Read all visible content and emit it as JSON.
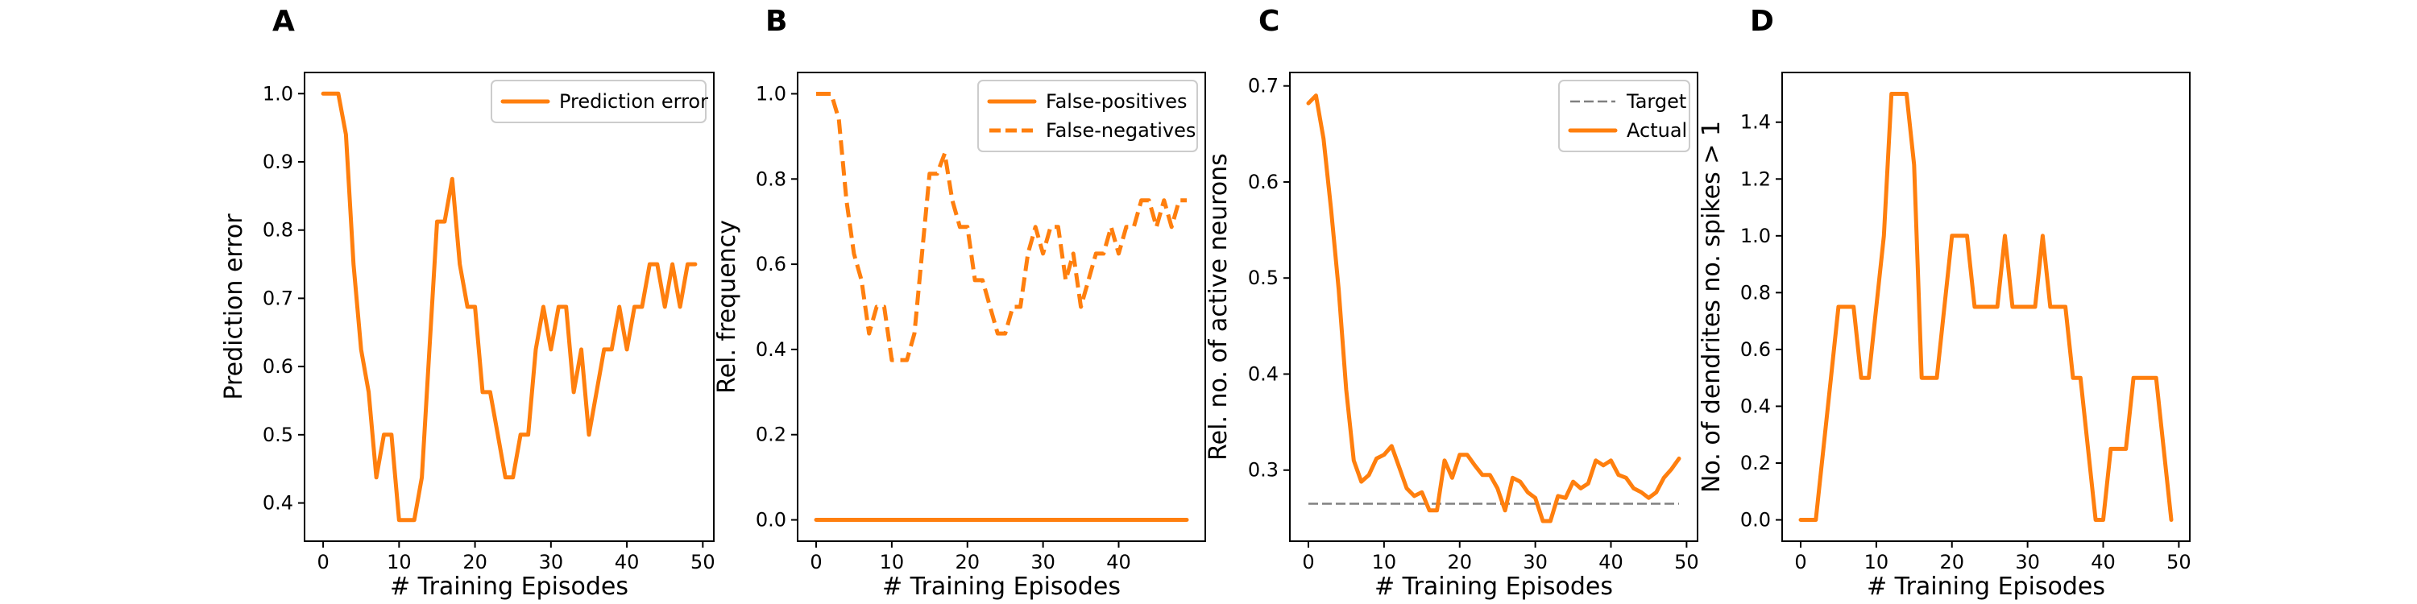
{
  "colors": {
    "series": "#ff7f0e",
    "target": "#808080"
  },
  "panels": [
    {
      "letter": "A",
      "legend_position": "top-right",
      "chart_data": {
        "type": "line",
        "title": "",
        "xlabel": "# Training Episodes",
        "ylabel": "Prediction error",
        "xlim": [
          -2.45,
          51.45
        ],
        "ylim": [
          0.344,
          1.031
        ],
        "xticks": [
          0,
          10,
          20,
          30,
          40,
          50
        ],
        "yticks": [
          0.4,
          0.5,
          0.6,
          0.7,
          0.8,
          0.9,
          1.0
        ],
        "ytick_format": 1,
        "series": [
          {
            "name": "Prediction error",
            "style": "solid",
            "x": [
              0,
              1,
              2,
              3,
              4,
              5,
              6,
              7,
              8,
              9,
              10,
              11,
              12,
              13,
              14,
              15,
              16,
              17,
              18,
              19,
              20,
              21,
              22,
              23,
              24,
              25,
              26,
              27,
              28,
              29,
              30,
              31,
              32,
              33,
              34,
              35,
              36,
              37,
              38,
              39,
              40,
              41,
              42,
              43,
              44,
              45,
              46,
              47,
              48,
              49
            ],
            "values": [
              1.0,
              1.0,
              1.0,
              0.94,
              0.75,
              0.625,
              0.5625,
              0.4375,
              0.5,
              0.5,
              0.375,
              0.375,
              0.375,
              0.4375,
              0.625,
              0.8125,
              0.8125,
              0.875,
              0.75,
              0.6875,
              0.6875,
              0.5625,
              0.5625,
              0.5,
              0.4375,
              0.4375,
              0.5,
              0.5,
              0.625,
              0.6875,
              0.625,
              0.6875,
              0.6875,
              0.5625,
              0.625,
              0.5,
              0.5625,
              0.625,
              0.625,
              0.6875,
              0.625,
              0.6875,
              0.6875,
              0.75,
              0.75,
              0.6875,
              0.75,
              0.6875,
              0.75,
              0.75
            ]
          }
        ]
      }
    },
    {
      "letter": "B",
      "legend_position": "top-right",
      "chart_data": {
        "type": "line",
        "title": "",
        "xlabel": "# Training Episodes",
        "ylabel": "Rel. frequency",
        "xlim": [
          -2.45,
          51.45
        ],
        "ylim": [
          -0.05,
          1.05
        ],
        "xticks": [
          0,
          10,
          20,
          30,
          40
        ],
        "yticks": [
          0.0,
          0.2,
          0.4,
          0.6,
          0.8,
          1.0
        ],
        "ytick_format": 1,
        "series": [
          {
            "name": "False-positives",
            "style": "solid",
            "x": [
              0,
              1,
              2,
              3,
              4,
              5,
              6,
              7,
              8,
              9,
              10,
              11,
              12,
              13,
              14,
              15,
              16,
              17,
              18,
              19,
              20,
              21,
              22,
              23,
              24,
              25,
              26,
              27,
              28,
              29,
              30,
              31,
              32,
              33,
              34,
              35,
              36,
              37,
              38,
              39,
              40,
              41,
              42,
              43,
              44,
              45,
              46,
              47,
              48,
              49
            ],
            "values": [
              0,
              0,
              0,
              0,
              0,
              0,
              0,
              0,
              0,
              0,
              0,
              0,
              0,
              0,
              0,
              0,
              0,
              0,
              0,
              0,
              0,
              0,
              0,
              0,
              0,
              0,
              0,
              0,
              0,
              0,
              0,
              0,
              0,
              0,
              0,
              0,
              0,
              0,
              0,
              0,
              0,
              0,
              0,
              0,
              0,
              0,
              0,
              0,
              0,
              0
            ]
          },
          {
            "name": "False-negatives",
            "style": "dashed",
            "x": [
              0,
              1,
              2,
              3,
              4,
              5,
              6,
              7,
              8,
              9,
              10,
              11,
              12,
              13,
              14,
              15,
              16,
              17,
              18,
              19,
              20,
              21,
              22,
              23,
              24,
              25,
              26,
              27,
              28,
              29,
              30,
              31,
              32,
              33,
              34,
              35,
              36,
              37,
              38,
              39,
              40,
              41,
              42,
              43,
              44,
              45,
              46,
              47,
              48,
              49
            ],
            "values": [
              1.0,
              1.0,
              1.0,
              0.94,
              0.75,
              0.625,
              0.5625,
              0.4375,
              0.5,
              0.5,
              0.375,
              0.375,
              0.375,
              0.4375,
              0.625,
              0.8125,
              0.8125,
              0.86,
              0.75,
              0.6875,
              0.6875,
              0.5625,
              0.5625,
              0.5,
              0.4375,
              0.4375,
              0.5,
              0.5,
              0.625,
              0.6875,
              0.625,
              0.6875,
              0.6875,
              0.5625,
              0.625,
              0.5,
              0.5625,
              0.625,
              0.625,
              0.6875,
              0.625,
              0.6875,
              0.6875,
              0.75,
              0.75,
              0.6875,
              0.75,
              0.6875,
              0.75,
              0.75
            ]
          }
        ]
      }
    },
    {
      "letter": "C",
      "legend_position": "top-right",
      "chart_data": {
        "type": "line",
        "title": "",
        "xlabel": "# Training Episodes",
        "ylabel": "Rel. no. of active neurons",
        "xlim": [
          -2.45,
          51.45
        ],
        "ylim": [
          0.226,
          0.714
        ],
        "xticks": [
          0,
          10,
          20,
          30,
          40,
          50
        ],
        "yticks": [
          0.3,
          0.4,
          0.5,
          0.6,
          0.7
        ],
        "ytick_format": 1,
        "series": [
          {
            "name": "Target",
            "style": "dashed-gray",
            "x": [
              0,
              49
            ],
            "values": [
              0.265,
              0.265
            ]
          },
          {
            "name": "Actual",
            "style": "solid",
            "x": [
              0,
              1,
              2,
              3,
              4,
              5,
              6,
              7,
              8,
              9,
              10,
              11,
              12,
              13,
              14,
              15,
              16,
              17,
              18,
              19,
              20,
              21,
              22,
              23,
              24,
              25,
              26,
              27,
              28,
              29,
              30,
              31,
              32,
              33,
              34,
              35,
              36,
              37,
              38,
              39,
              40,
              41,
              42,
              43,
              44,
              45,
              46,
              47,
              48,
              49
            ],
            "values": [
              0.682,
              0.69,
              0.645,
              0.571,
              0.488,
              0.384,
              0.31,
              0.288,
              0.295,
              0.312,
              0.316,
              0.325,
              0.303,
              0.281,
              0.273,
              0.277,
              0.258,
              0.258,
              0.31,
              0.292,
              0.316,
              0.316,
              0.305,
              0.295,
              0.295,
              0.281,
              0.258,
              0.292,
              0.288,
              0.277,
              0.271,
              0.247,
              0.247,
              0.273,
              0.271,
              0.288,
              0.281,
              0.286,
              0.31,
              0.305,
              0.31,
              0.295,
              0.292,
              0.281,
              0.277,
              0.271,
              0.277,
              0.292,
              0.301,
              0.312
            ]
          }
        ]
      }
    },
    {
      "letter": "D",
      "legend_position": "none",
      "chart_data": {
        "type": "line",
        "title": "",
        "xlabel": "# Training Episodes",
        "ylabel": "No. of dendrites no. spikes > 1",
        "xlim": [
          -2.45,
          51.45
        ],
        "ylim": [
          -0.075,
          1.575
        ],
        "xticks": [
          0,
          10,
          20,
          30,
          40,
          50
        ],
        "yticks": [
          0.0,
          0.2,
          0.4,
          0.6,
          0.8,
          1.0,
          1.2,
          1.4
        ],
        "ytick_format": 1,
        "series": [
          {
            "name": "",
            "style": "solid",
            "x": [
              0,
              1,
              2,
              3,
              4,
              5,
              6,
              7,
              8,
              9,
              10,
              11,
              12,
              13,
              14,
              15,
              16,
              17,
              18,
              19,
              20,
              21,
              22,
              23,
              24,
              25,
              26,
              27,
              28,
              29,
              30,
              31,
              32,
              33,
              34,
              35,
              36,
              37,
              38,
              39,
              40,
              41,
              42,
              43,
              44,
              45,
              46,
              47,
              48,
              49
            ],
            "values": [
              0,
              0,
              0,
              0.25,
              0.5,
              0.75,
              0.75,
              0.75,
              0.5,
              0.5,
              0.75,
              1.0,
              1.5,
              1.5,
              1.5,
              1.25,
              0.5,
              0.5,
              0.5,
              0.75,
              1.0,
              1.0,
              1.0,
              0.75,
              0.75,
              0.75,
              0.75,
              1.0,
              0.75,
              0.75,
              0.75,
              0.75,
              1.0,
              0.75,
              0.75,
              0.75,
              0.5,
              0.5,
              0.25,
              0,
              0,
              0.25,
              0.25,
              0.25,
              0.5,
              0.5,
              0.5,
              0.5,
              0.25,
              0
            ]
          }
        ]
      }
    }
  ]
}
